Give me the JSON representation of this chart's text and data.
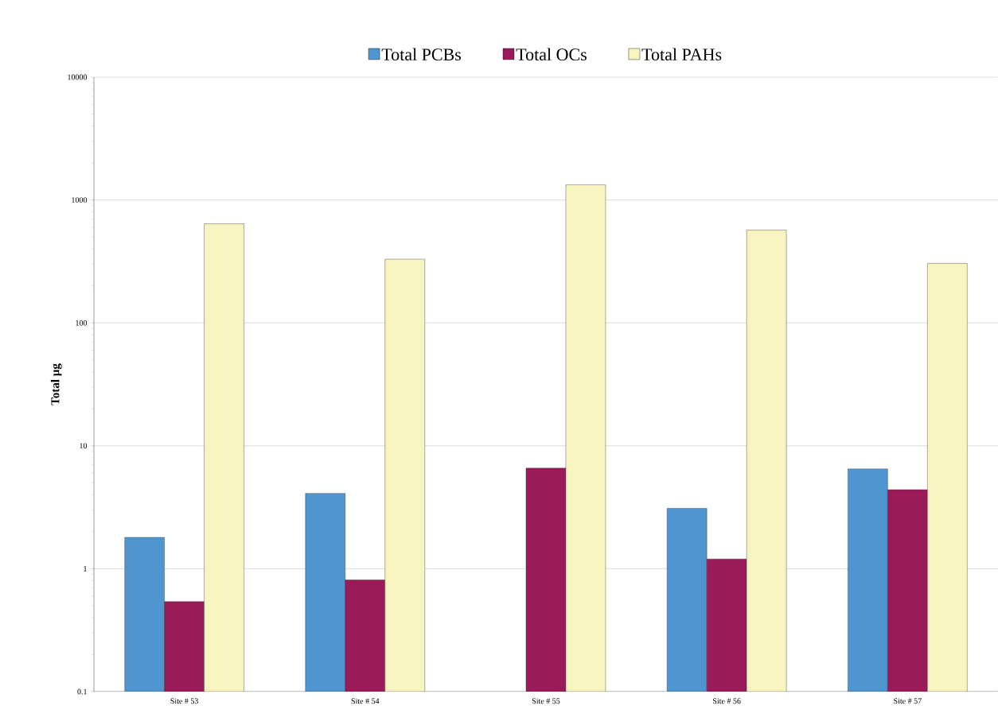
{
  "chart_data": {
    "type": "bar",
    "ylabel": "Total µg",
    "categories": [
      "Site # 53",
      "Site # 54",
      "Site # 55",
      "Site # 56",
      "Site # 57"
    ],
    "series": [
      {
        "name": "Total PCBs",
        "color": "#4f95cf",
        "values": [
          1.8,
          4.1,
          null,
          3.1,
          6.5
        ]
      },
      {
        "name": "Total OCs",
        "color": "#9b1a5a",
        "values": [
          0.54,
          0.81,
          6.6,
          1.2,
          4.4
        ]
      },
      {
        "name": "Total PAHs",
        "color": "#f8f4c0",
        "values": [
          640,
          330,
          1330,
          570,
          305
        ]
      }
    ],
    "log": "y",
    "ylim": [
      0.1,
      10000
    ],
    "yticks": [
      0.1,
      1,
      10,
      100,
      1000,
      10000
    ],
    "grid": "y",
    "legend": "top"
  }
}
